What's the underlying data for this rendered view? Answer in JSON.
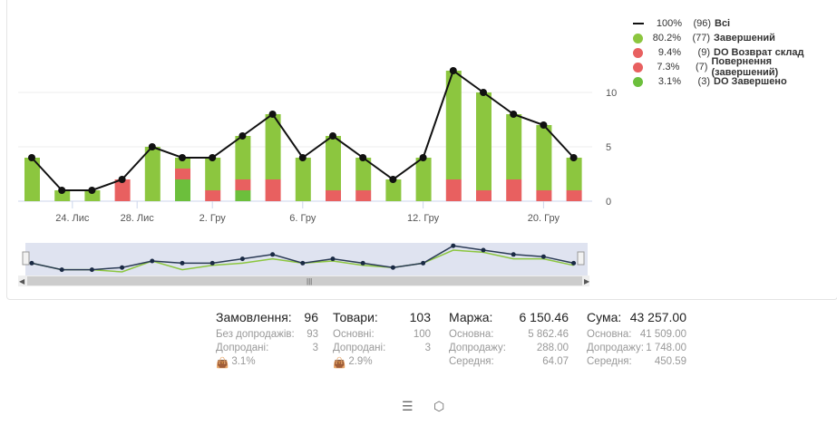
{
  "legend": [
    {
      "name": "Всі",
      "pct": "100%",
      "count": "(96)",
      "color": "#111111",
      "type": "line"
    },
    {
      "name": "Завершений",
      "pct": "80.2%",
      "count": "(77)",
      "color": "#8cc63f",
      "type": "dot"
    },
    {
      "name": "DO Возврат склад",
      "pct": "9.4%",
      "count": "(9)",
      "color": "#e86060",
      "type": "dot"
    },
    {
      "name": "Повернення (завершений)",
      "pct": "7.3%",
      "count": "(7)",
      "color": "#e86060",
      "type": "dot"
    },
    {
      "name": "DO Завершено",
      "pct": "3.1%",
      "count": "(3)",
      "color": "#6cbf3c",
      "type": "dot"
    }
  ],
  "chart_data": {
    "type": "bar",
    "stacked": true,
    "ylim": [
      0,
      12
    ],
    "yticks": [
      0,
      5,
      10
    ],
    "xticks": [
      {
        "label": "24. Лис",
        "at": 1.35
      },
      {
        "label": "28. Лис",
        "at": 3.5
      },
      {
        "label": "2. Гру",
        "at": 6
      },
      {
        "label": "6. Гру",
        "at": 9
      },
      {
        "label": "12. Гру",
        "at": 13
      },
      {
        "label": "20. Гру",
        "at": 17
      }
    ],
    "series": [
      {
        "name": "DO Завершено",
        "color": "#6cbf3c",
        "values": [
          0,
          0,
          0,
          0,
          0,
          2,
          0,
          1,
          0,
          0,
          0,
          0,
          0,
          0,
          0,
          0,
          0,
          0,
          0
        ]
      },
      {
        "name": "DO Возврат склад",
        "color": "#e86060",
        "values": [
          0,
          0,
          0,
          2,
          0,
          1,
          1,
          1,
          2,
          0,
          1,
          0,
          0,
          0,
          0,
          0,
          0,
          0,
          0
        ]
      },
      {
        "name": "Повернення (завершений)",
        "color": "#e86060",
        "values": [
          0,
          0,
          0,
          0,
          0,
          0,
          0,
          0,
          0,
          0,
          0,
          1,
          0,
          0,
          2,
          1,
          2,
          1,
          1
        ]
      },
      {
        "name": "Завершений",
        "color": "#8cc63f",
        "values": [
          4,
          1,
          1,
          0,
          5,
          1,
          3,
          4,
          6,
          4,
          5,
          3,
          2,
          4,
          10,
          9,
          6,
          6,
          3
        ]
      }
    ],
    "total": {
      "name": "Всі",
      "values": [
        4,
        1,
        1,
        2,
        5,
        4,
        4,
        6,
        8,
        4,
        6,
        4,
        2,
        4,
        12,
        10,
        8,
        7,
        4
      ]
    }
  },
  "stats": [
    {
      "title": "Замовлення:",
      "value": "96",
      "rows": [
        [
          "Без допродажів:",
          "93"
        ],
        [
          "Допродані:",
          "3"
        ]
      ],
      "extra": "3.1%"
    },
    {
      "title": "Товари:",
      "value": "103",
      "rows": [
        [
          "Основні:",
          "100"
        ],
        [
          "Допродані:",
          "3"
        ]
      ],
      "extra": "2.9%"
    },
    {
      "title": "Маржа:",
      "value": "6 150.46",
      "rows": [
        [
          "Основна:",
          "5 862.46"
        ],
        [
          "Допродажу:",
          "288.00"
        ],
        [
          "Середня:",
          "64.07"
        ]
      ]
    },
    {
      "title": "Сума:",
      "value": "43 257.00",
      "rows": [
        [
          "Основна:",
          "41 509.00"
        ],
        [
          "Допродажу:",
          "1 748.00"
        ],
        [
          "Середня:",
          "450.59"
        ]
      ]
    }
  ],
  "navigator": {
    "scroll_grip": "|||"
  }
}
